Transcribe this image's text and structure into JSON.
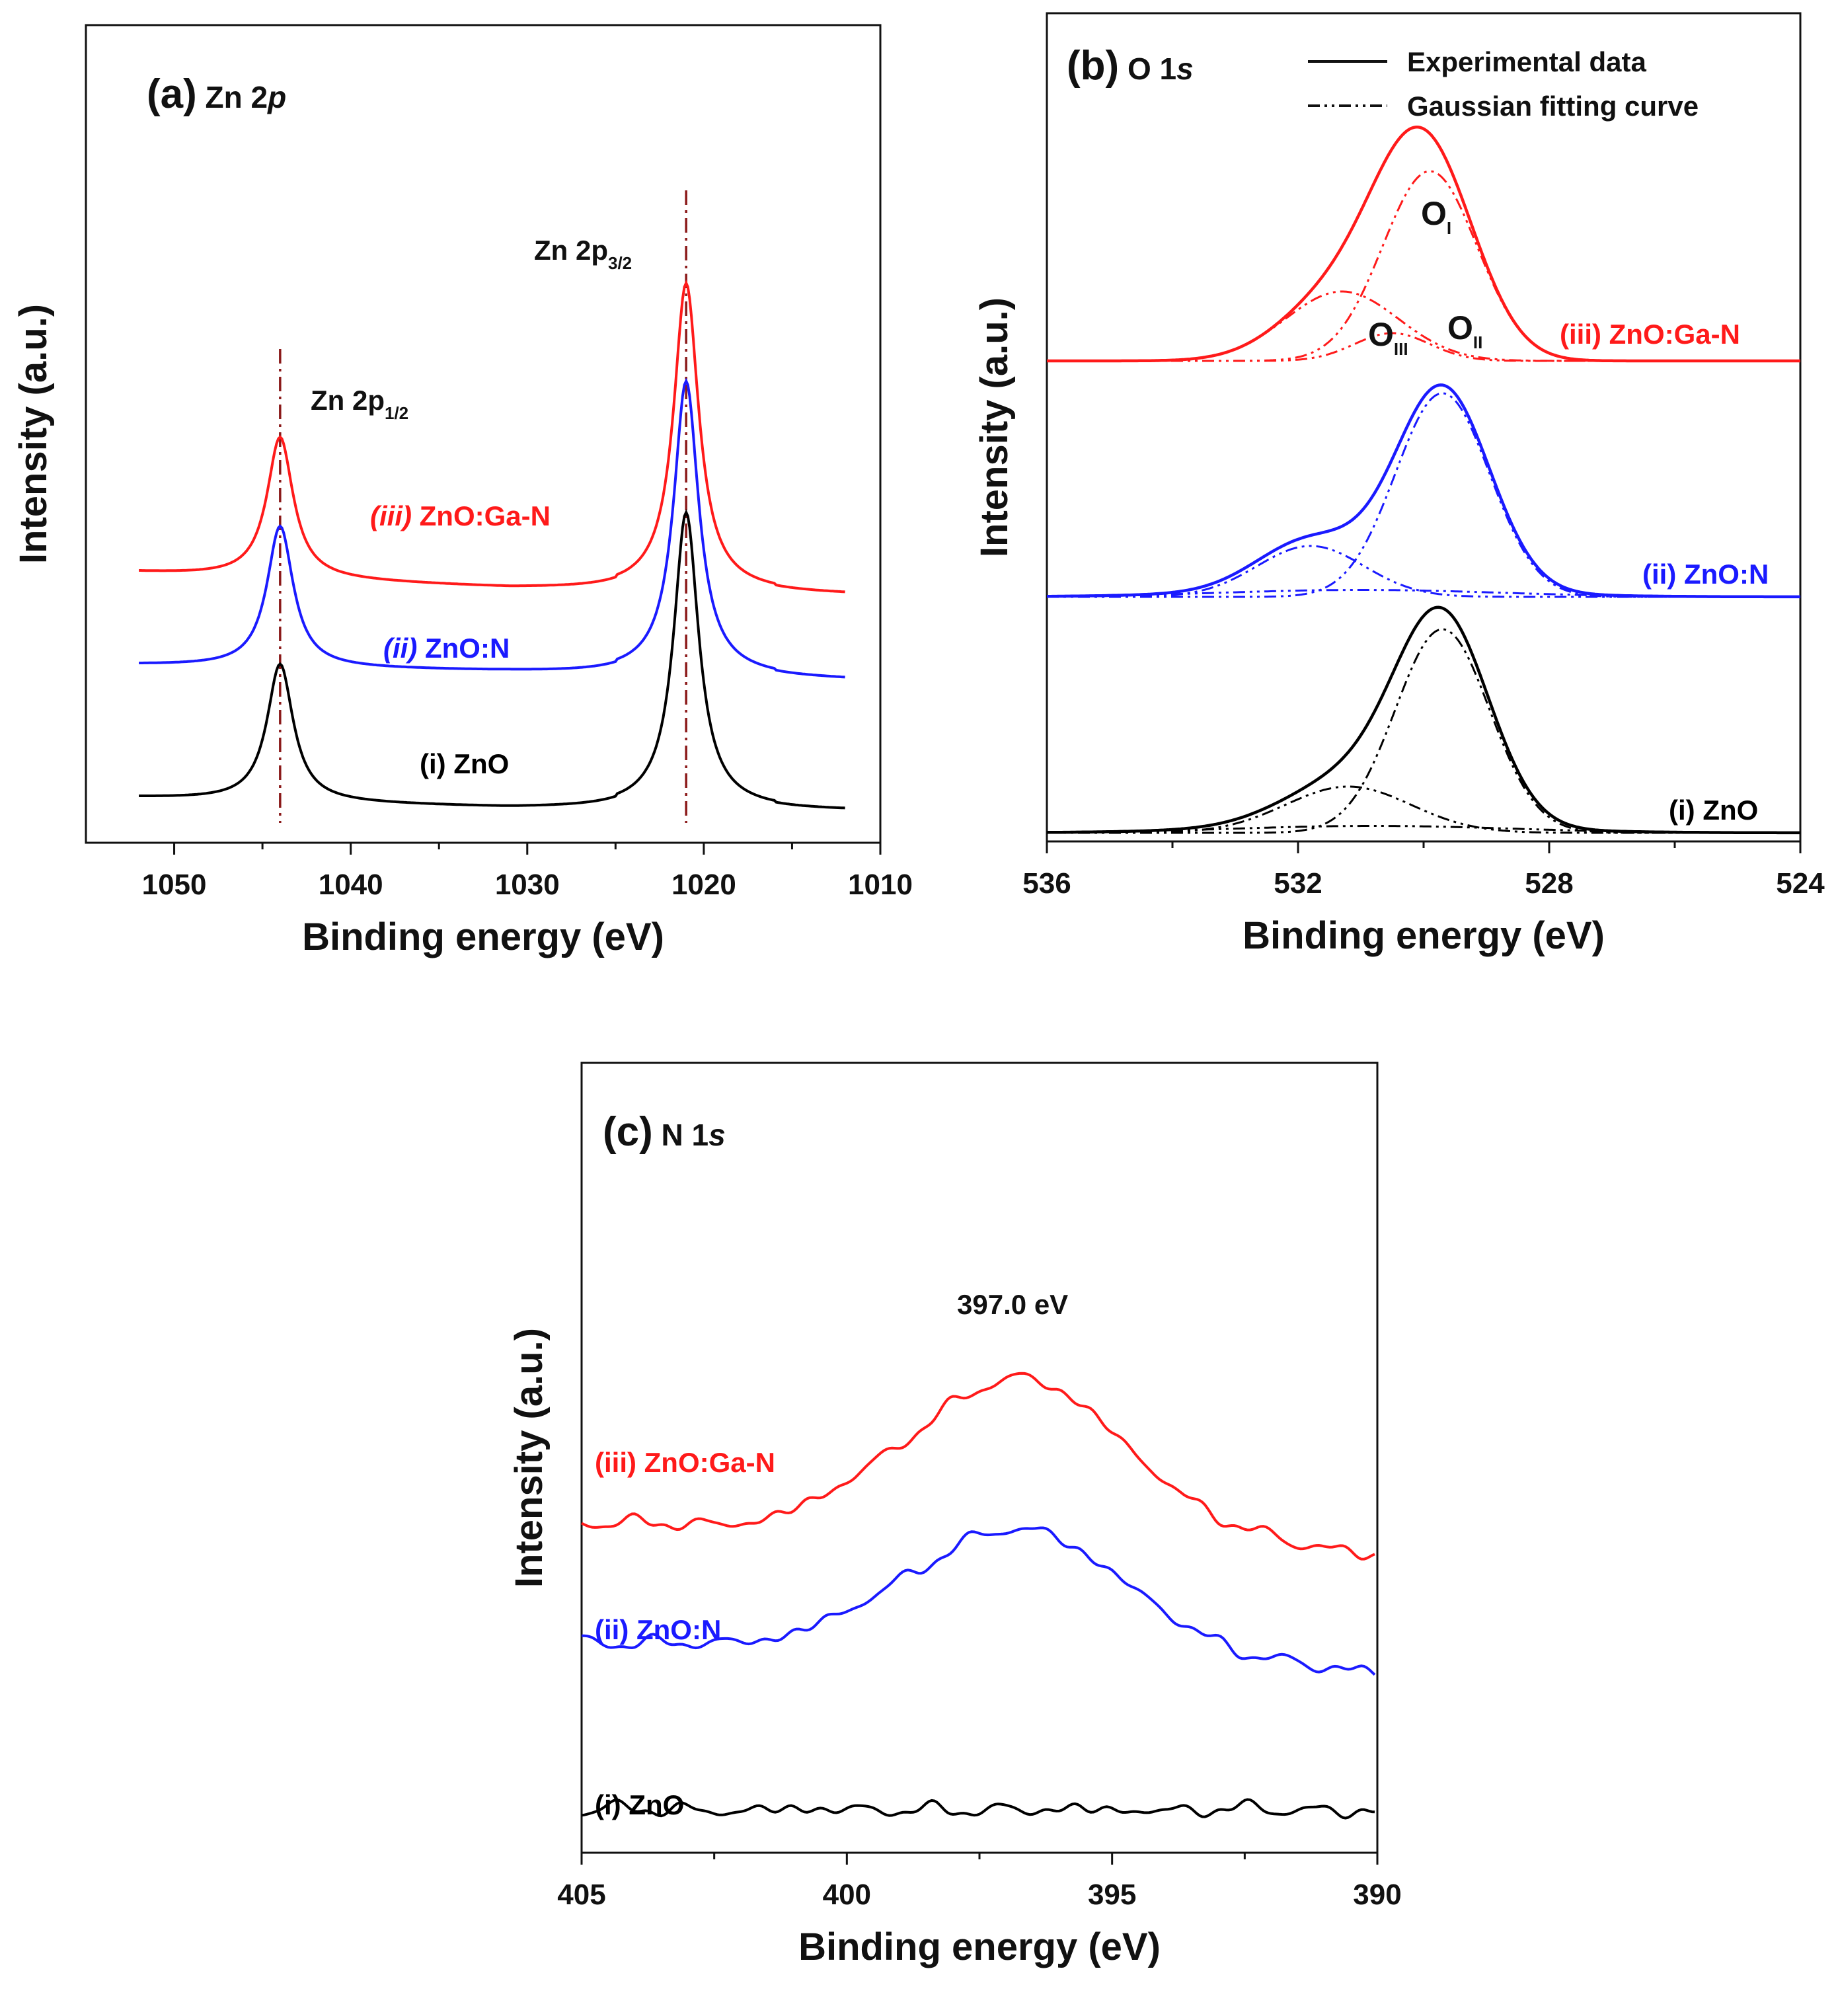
{
  "chart_data": [
    {
      "panel": "(a)",
      "title": "Zn 2p",
      "title_text": "Zn 2",
      "title_italic": "p",
      "type": "line",
      "xlabel": "Binding energy (eV)",
      "ylabel": "Intensity (a.u.)",
      "xlim": [
        1055,
        1010
      ],
      "ylim": [
        0,
        10
      ],
      "xticks": [
        1050,
        1040,
        1030,
        1020,
        1010
      ],
      "xtick_labels": [
        "1050",
        "1040",
        "1030",
        "1020",
        "1010"
      ],
      "x_range": [
        1052,
        1012
      ],
      "peaks": [
        {
          "name": "Zn 2p1/2",
          "label_main": "Zn 2p",
          "label_sub": "1/2",
          "energy": 1044.0,
          "width": 0.9
        },
        {
          "name": "Zn 2p3/2",
          "label_main": "Zn 2p",
          "label_sub": "3/2",
          "energy": 1021.0,
          "width": 0.85
        }
      ],
      "reference_lines": [
        1044.0,
        1021.0
      ],
      "series": [
        {
          "name": "(i) ZnO",
          "label_parts": [
            "(i)",
            "ZnO"
          ],
          "color": "#000000",
          "base_start": 0.33,
          "base_mid": 0.1,
          "base_end": 0.05,
          "peak1": 3.3,
          "peak2": 6.4,
          "label_energy": 1037
        },
        {
          "name": "(ii) ZnO:N",
          "label_parts": [
            "(ii)",
            "ZnO:N"
          ],
          "color": "#1a1aff",
          "base_start": 3.2,
          "base_mid": 3.05,
          "base_end": 2.88,
          "peak1": 6.25,
          "peak2": 9.3,
          "label_energy": 1036
        },
        {
          "name": "(iii) ZnO:Ga-N",
          "label_parts": [
            "(iii)",
            "ZnO:Ga-N"
          ],
          "color": "#ff1a1a",
          "base_start": 5.2,
          "base_mid": 4.85,
          "base_end": 4.72,
          "peak1": 8.25,
          "peak2": 11.4,
          "label_energy": 1034
        }
      ]
    },
    {
      "panel": "(b)",
      "title": "O 1s",
      "title_text": "O 1",
      "title_italic": "s",
      "type": "line",
      "xlabel": "Binding energy (eV)",
      "ylabel": "Intensity (a.u.)",
      "xlim": [
        536,
        524
      ],
      "ylim": [
        0,
        10
      ],
      "xticks": [
        536,
        532,
        528,
        524
      ],
      "xtick_labels": [
        "536",
        "532",
        "528",
        "524"
      ],
      "legend": {
        "position": "top-right",
        "entries": [
          {
            "label": "Experimental data",
            "style": "solid"
          },
          {
            "label": "Gaussian fitting curve",
            "style": "dash-dot"
          }
        ]
      },
      "component_labels": [
        {
          "main": "O",
          "sub": "I"
        },
        {
          "main": "O",
          "sub": "III"
        },
        {
          "main": "O",
          "sub": "II"
        }
      ],
      "series": [
        {
          "name": "(i) ZnO",
          "label_parts": [
            "(i)",
            "ZnO"
          ],
          "color": "#000000",
          "offset": 0.0,
          "components": [
            {
              "center": 529.7,
              "amp": 4.4,
              "width": 0.75
            },
            {
              "center": 531.2,
              "amp": 1.0,
              "width": 1.0
            },
            {
              "center": 530.8,
              "amp": 0.15,
              "width": 2.2
            }
          ]
        },
        {
          "name": "(ii) ZnO:N",
          "label_parts": [
            "(ii)",
            "ZnO:N"
          ],
          "color": "#1a1aff",
          "offset": 5.1,
          "components": [
            {
              "center": 529.7,
              "amp": 4.4,
              "width": 0.75
            },
            {
              "center": 531.8,
              "amp": 1.1,
              "width": 0.85
            },
            {
              "center": 531.0,
              "amp": 0.15,
              "width": 2.2
            }
          ]
        },
        {
          "name": "(iii) ZnO:Ga-N",
          "label_parts": [
            "(iii)",
            "ZnO:Ga-N"
          ],
          "color": "#ff1a1a",
          "offset": 10.2,
          "components": [
            {
              "center": 529.9,
              "amp": 4.1,
              "width": 0.75
            },
            {
              "center": 531.3,
              "amp": 1.5,
              "width": 0.9
            },
            {
              "center": 530.5,
              "amp": 0.6,
              "width": 0.6
            }
          ]
        }
      ]
    },
    {
      "panel": "(c)",
      "title": "N 1s",
      "title_text": "N 1",
      "title_italic": "s",
      "type": "line",
      "xlabel": "Binding energy (eV)",
      "ylabel": "Intensity (a.u.)",
      "xlim": [
        405,
        390
      ],
      "ylim": [
        0,
        10
      ],
      "xticks": [
        405,
        400,
        395,
        390
      ],
      "xtick_labels": [
        "405",
        "400",
        "395",
        "390"
      ],
      "peak_annotation": "397.0 eV",
      "peak_energy": 397.0,
      "series": [
        {
          "name": "(i) ZnO",
          "label_parts": [
            "(i)",
            "ZnO"
          ],
          "color": "#000000",
          "base": 0.5,
          "amp": 0.0,
          "noise": 0.09
        },
        {
          "name": "(ii) ZnO:N",
          "label_parts": [
            "(ii)",
            "ZnO:N"
          ],
          "color": "#1a1aff",
          "base": 3.35,
          "amp": 1.65,
          "noise": 0.08
        },
        {
          "name": "(iii) ZnO:Ga-N",
          "label_parts": [
            "(iii)",
            "ZnO:Ga-N"
          ],
          "color": "#ff1a1a",
          "base": 5.35,
          "amp": 2.05,
          "noise": 0.08
        }
      ]
    }
  ]
}
